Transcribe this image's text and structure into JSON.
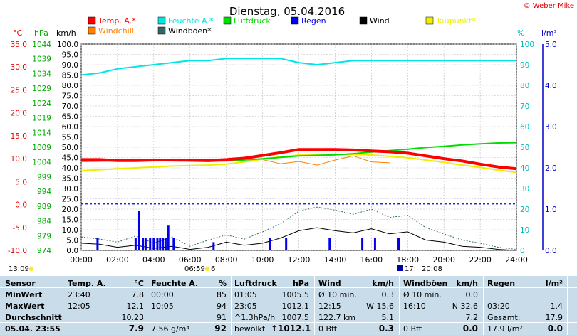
{
  "title": "Dienstag, 05.04.2016",
  "credit": "© Weber Mike",
  "axis_units": {
    "temp": "°C",
    "pressure": "hPa",
    "speed": "km/h",
    "humidity": "%",
    "rain": "l/m²"
  },
  "legend": [
    {
      "label": "Temp. A.*",
      "color": "#ff0000"
    },
    {
      "label": "Feuchte A.*",
      "color": "#00e5e5"
    },
    {
      "label": "Luftdruck",
      "color": "#00dd00"
    },
    {
      "label": "Regen",
      "color": "#0000ee"
    },
    {
      "label": "Wind",
      "color": "#000000"
    },
    {
      "label": "Taupunkt*",
      "color": "#eeee00"
    },
    {
      "label": "Windchill",
      "color": "#ff7f00"
    },
    {
      "label": "Windböen*",
      "color": "#336666"
    }
  ],
  "time_labels": {
    "left": "13:09",
    "sunrise": "06:59",
    "sunrise_suffix": "6",
    "sunset_prefix": "17:",
    "sunset": "20:08"
  },
  "chart_data": {
    "type": "line",
    "x": [
      "00:00",
      "01:00",
      "02:00",
      "03:00",
      "04:00",
      "05:00",
      "06:00",
      "07:00",
      "08:00",
      "09:00",
      "10:00",
      "11:00",
      "12:00",
      "13:00",
      "14:00",
      "15:00",
      "16:00",
      "17:00",
      "18:00",
      "19:00",
      "20:00",
      "21:00",
      "22:00",
      "23:00",
      "24:00"
    ],
    "x_ticks": [
      "00:00",
      "02:00",
      "04:00",
      "06:00",
      "08:00",
      "10:00",
      "12:00",
      "14:00",
      "16:00",
      "18:00",
      "20:00",
      "22:00",
      "24:00"
    ],
    "axes": {
      "temp": {
        "ylim": [
          -10,
          35
        ],
        "ticks": [
          "35.0",
          "30.0",
          "25.0",
          "20.0",
          "15.0",
          "10.0",
          "5.0",
          "0.0",
          "-5.0",
          "-10.0"
        ]
      },
      "pressure": {
        "ylim": [
          974,
          1047
        ],
        "ticks": [
          "1044",
          "1039",
          "1034",
          "1029",
          "1024",
          "1019",
          "1014",
          "1009",
          "1004",
          "999",
          "994",
          "989",
          "984",
          "979",
          "974"
        ]
      },
      "speed": {
        "ylim": [
          0,
          100
        ],
        "ticks": [
          "100.0",
          "95.0",
          "90.0",
          "85.0",
          "80.0",
          "75.0",
          "70.0",
          "65.0",
          "60.0",
          "55.0",
          "50.0",
          "45.0",
          "40.0",
          "35.0",
          "30.0",
          "25.0",
          "20.0",
          "15.0",
          "10.0",
          "5.0",
          "0.0"
        ]
      },
      "humidity": {
        "ylim": [
          0,
          100
        ],
        "ticks": [
          "100",
          "90",
          "80",
          "70",
          "60",
          "50",
          "40",
          "30",
          "20",
          "10",
          "0"
        ]
      },
      "rain": {
        "ylim": [
          0,
          5
        ],
        "ticks": [
          "5.0",
          "4.0",
          "3.0",
          "2.0",
          "1.0",
          "0.0"
        ]
      }
    },
    "series": [
      {
        "name": "Temp. A.*",
        "axis": "temp",
        "color": "#ff0000",
        "width": 4,
        "values": [
          9.8,
          9.8,
          9.6,
          9.6,
          9.7,
          9.7,
          9.7,
          9.6,
          9.8,
          10.1,
          10.7,
          11.3,
          12.0,
          12.0,
          12.0,
          11.9,
          11.7,
          11.5,
          11.2,
          10.6,
          10.0,
          9.5,
          8.8,
          8.2,
          7.8
        ]
      },
      {
        "name": "Feuchte A.*",
        "axis": "humidity",
        "color": "#00e5e5",
        "width": 2,
        "values": [
          85,
          86,
          88,
          89,
          90,
          91,
          92,
          92,
          93,
          93,
          93,
          93,
          91,
          90,
          91,
          92,
          92,
          92,
          92,
          92,
          92,
          92,
          92,
          92,
          92
        ]
      },
      {
        "name": "Luftdruck",
        "axis": "pressure",
        "color": "#00dd00",
        "width": 2,
        "values": [
          1005.5,
          1005.6,
          1005.7,
          1005.9,
          1005.8,
          1005.7,
          1005.6,
          1005.5,
          1005.7,
          1006.0,
          1006.4,
          1006.9,
          1007.4,
          1007.6,
          1007.8,
          1008.2,
          1008.8,
          1009.3,
          1009.8,
          1010.4,
          1010.8,
          1011.3,
          1011.7,
          1012.0,
          1012.1
        ]
      },
      {
        "name": "Taupunkt*",
        "axis": "temp",
        "color": "#eeee00",
        "width": 2,
        "values": [
          7.4,
          7.6,
          7.8,
          8.0,
          8.2,
          8.4,
          8.5,
          8.6,
          8.8,
          9.3,
          9.9,
          10.4,
          10.8,
          11.0,
          11.0,
          10.9,
          10.8,
          10.5,
          10.2,
          9.7,
          9.2,
          8.6,
          8.1,
          7.5,
          7.0
        ]
      },
      {
        "name": "Windchill",
        "axis": "temp",
        "color": "#ff7f00",
        "width": 1,
        "values": [
          null,
          null,
          null,
          null,
          null,
          null,
          null,
          null,
          null,
          null,
          9.8,
          8.9,
          9.4,
          8.6,
          9.7,
          10.6,
          9.3,
          9.1,
          null,
          null,
          null,
          null,
          null,
          null,
          null
        ]
      },
      {
        "name": "Wind",
        "axis": "speed",
        "color": "#000000",
        "width": 1,
        "values": [
          3.5,
          3.0,
          1.5,
          2.5,
          1.0,
          2.0,
          0.5,
          1.5,
          4.0,
          2.5,
          3.5,
          6.0,
          9.5,
          11.0,
          9.5,
          8.5,
          10.5,
          8.0,
          9.0,
          5.0,
          4.0,
          2.0,
          1.5,
          0.5,
          0.0
        ]
      },
      {
        "name": "Windböen*",
        "axis": "speed",
        "color": "#336666",
        "width": 1,
        "dashed": true,
        "values": [
          6.5,
          5.5,
          4.0,
          7.0,
          3.5,
          6.5,
          2.0,
          5.0,
          7.5,
          5.5,
          9.0,
          13.0,
          19.0,
          21.0,
          19.5,
          17.5,
          20.0,
          16.0,
          17.0,
          11.0,
          8.0,
          5.0,
          3.5,
          1.5,
          0.5
        ]
      }
    ],
    "rain_bars": {
      "axis": "speed",
      "color": "#0000ee",
      "events": [
        [
          0.9,
          6
        ],
        [
          3.0,
          6
        ],
        [
          3.2,
          19
        ],
        [
          3.4,
          6
        ],
        [
          3.55,
          6
        ],
        [
          3.8,
          6
        ],
        [
          4.0,
          6
        ],
        [
          4.2,
          6
        ],
        [
          4.35,
          6
        ],
        [
          4.5,
          6
        ],
        [
          4.65,
          6
        ],
        [
          4.8,
          12
        ],
        [
          5.1,
          6
        ],
        [
          7.3,
          4
        ],
        [
          10.4,
          6
        ],
        [
          11.3,
          6
        ],
        [
          13.7,
          6
        ],
        [
          15.5,
          6
        ],
        [
          16.2,
          6
        ],
        [
          17.5,
          6
        ]
      ]
    },
    "reference_line": {
      "axis": "speed",
      "value": 22.5,
      "color": "#0000ee"
    }
  },
  "table": {
    "headers": {
      "sensor": "Sensor",
      "temp": "Temp. A.",
      "temp_unit": "°C",
      "hum": "Feuchte A.",
      "hum_unit": "%",
      "press": "Luftdruck",
      "press_unit": "hPa",
      "wind": "Wind",
      "wind_unit": "km/h",
      "gust": "Windböen",
      "gust_unit": "km/h",
      "rain": "Regen",
      "rain_unit": "l/m²"
    },
    "rows": [
      {
        "label": "MinWert",
        "temp_time": "23:40",
        "temp": "7.8",
        "hum_time": "00:00",
        "hum": "85",
        "press_time": "01:05",
        "press": "1005.5",
        "wind_time": "Ø 10 min.",
        "wind": "0.3",
        "gust_time": "Ø 10 min.",
        "gust": "0.0",
        "rain_time": "",
        "rain": ""
      },
      {
        "label": "MaxWert",
        "temp_time": "12:05",
        "temp": "12.1",
        "hum_time": "10:05",
        "hum": "94",
        "press_time": "23:05",
        "press": "1012.1",
        "wind_time": "12:15",
        "wind": "W 15.6",
        "gust_time": "16:10",
        "gust": "N 32.6",
        "rain_time": "03:20",
        "rain": "1.4"
      },
      {
        "label": "Durchschnitt",
        "temp_time": "",
        "temp": "10.23",
        "hum_time": "",
        "hum": "91",
        "press_time": "^1.3hPa/h",
        "press": "1007.5",
        "wind_time": "122.7 km",
        "wind": "5.1",
        "gust_time": "",
        "gust": "7.2",
        "rain_time": "Gesamt:",
        "rain": "17.9"
      },
      {
        "label": "05.04.  23:55",
        "temp_time": "",
        "temp": "7.9",
        "hum_time": "7.56 g/m³",
        "hum": "92",
        "press_time": "bewölkt",
        "press": "↑1012.1",
        "wind_time": "0 Bft",
        "wind": "0.3",
        "gust_time": "0 Bft",
        "gust": "0.0",
        "rain_time": "17.9 l/m²",
        "rain": "0.0"
      }
    ]
  }
}
